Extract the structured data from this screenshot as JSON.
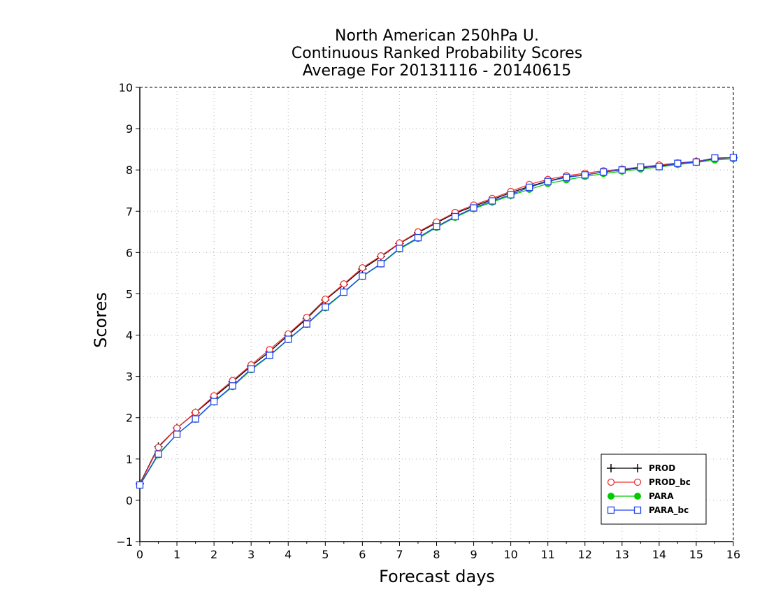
{
  "chart_data": {
    "type": "line",
    "title": [
      "North American 250hPa U.",
      "Continuous Ranked Probability Scores",
      "Average For 20131116 - 20140615"
    ],
    "xlabel": "Forecast days",
    "ylabel": "Scores",
    "xlim": [
      0,
      16
    ],
    "ylim": [
      -1,
      10
    ],
    "xticks": [
      0,
      1,
      2,
      3,
      4,
      5,
      6,
      7,
      8,
      9,
      10,
      11,
      12,
      13,
      14,
      15,
      16
    ],
    "yticks": [
      -1,
      0,
      1,
      2,
      3,
      4,
      5,
      6,
      7,
      8,
      9,
      10
    ],
    "grid": true,
    "legend_position": "bottom-right",
    "x": [
      0,
      0.5,
      1,
      1.5,
      2,
      2.5,
      3,
      3.5,
      4,
      4.5,
      5,
      5.5,
      6,
      6.5,
      7,
      7.5,
      8,
      8.5,
      9,
      9.5,
      10,
      10.5,
      11,
      11.5,
      12,
      12.5,
      13,
      13.5,
      14,
      14.5,
      15,
      15.5,
      16
    ],
    "series": [
      {
        "name": "PROD",
        "color": "#000000",
        "marker": "plus",
        "values": [
          0.4,
          1.3,
          1.75,
          2.12,
          2.5,
          2.87,
          3.25,
          3.6,
          4.0,
          4.4,
          4.85,
          5.22,
          5.6,
          5.9,
          6.22,
          6.48,
          6.72,
          6.95,
          7.12,
          7.28,
          7.45,
          7.6,
          7.73,
          7.83,
          7.88,
          7.95,
          8.0,
          8.05,
          8.1,
          8.15,
          8.2,
          8.27,
          8.3
        ]
      },
      {
        "name": "PROD_bc",
        "color": "#ee3333",
        "marker": "circle-open",
        "values": [
          0.38,
          1.28,
          1.75,
          2.13,
          2.53,
          2.9,
          3.28,
          3.65,
          4.03,
          4.43,
          4.87,
          5.24,
          5.63,
          5.92,
          6.23,
          6.5,
          6.74,
          6.97,
          7.15,
          7.31,
          7.48,
          7.65,
          7.77,
          7.86,
          7.92,
          7.98,
          8.02,
          8.07,
          8.12,
          8.17,
          8.21,
          8.28,
          8.3
        ]
      },
      {
        "name": "PARA",
        "color": "#00cc00",
        "marker": "circle-filled",
        "values": [
          0.36,
          1.1,
          1.6,
          1.96,
          2.38,
          2.75,
          3.16,
          3.5,
          3.89,
          4.26,
          4.66,
          5.03,
          5.42,
          5.72,
          6.08,
          6.34,
          6.61,
          6.85,
          7.06,
          7.22,
          7.38,
          7.53,
          7.67,
          7.76,
          7.84,
          7.91,
          7.97,
          8.02,
          8.07,
          8.13,
          8.18,
          8.24,
          8.27
        ]
      },
      {
        "name": "PARA_bc",
        "color": "#2244ee",
        "marker": "square-open",
        "values": [
          0.37,
          1.12,
          1.6,
          1.97,
          2.39,
          2.77,
          3.18,
          3.51,
          3.9,
          4.27,
          4.68,
          5.04,
          5.43,
          5.73,
          6.1,
          6.36,
          6.63,
          6.87,
          7.08,
          7.25,
          7.4,
          7.58,
          7.72,
          7.82,
          7.88,
          7.95,
          8.0,
          8.07,
          8.08,
          8.16,
          8.19,
          8.29,
          8.3
        ]
      }
    ]
  }
}
